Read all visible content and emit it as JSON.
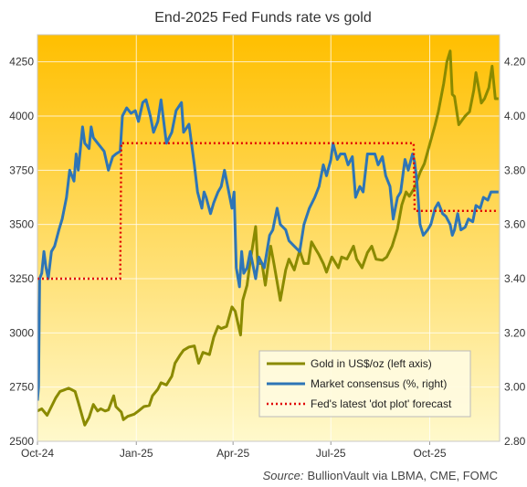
{
  "chart_data": {
    "type": "line",
    "title": "End-2025 Fed Funds rate vs gold",
    "source_prefix": "Source:",
    "source_text": "BullionVault via LBMA, CME, FOMC",
    "x_tick_labels": [
      "Oct-24",
      "Jan-25",
      "Apr-25",
      "Jul-25",
      "Oct-25"
    ],
    "x_tick_dates": [
      "2024-10-01",
      "2025-01-01",
      "2025-04-01",
      "2025-07-01",
      "2025-10-01"
    ],
    "x_range": [
      "2024-10-01",
      "2025-12-05"
    ],
    "y_left": {
      "range": [
        2500,
        4375
      ],
      "ticks": [
        2500,
        2750,
        3000,
        3250,
        3500,
        3750,
        4000,
        4250
      ]
    },
    "y_right": {
      "range": [
        2.8,
        4.3
      ],
      "ticks": [
        "2.80",
        "3.00",
        "3.20",
        "3.40",
        "3.60",
        "3.80",
        "4.00",
        "4.20"
      ]
    },
    "grid": true,
    "legend_position": "bottom-right",
    "colors": {
      "gold": "#8a8a00",
      "consensus": "#2e75b6",
      "dots": "#e00000",
      "bg_top": "#ffbf00",
      "bg_bottom": "#fff9cc"
    },
    "series": [
      {
        "name": "Gold in US$/oz (left axis)",
        "axis": "left",
        "points": [
          [
            "2024-10-01",
            2640
          ],
          [
            "2024-10-05",
            2650
          ],
          [
            "2024-10-10",
            2620
          ],
          [
            "2024-10-14",
            2660
          ],
          [
            "2024-10-18",
            2700
          ],
          [
            "2024-10-22",
            2730
          ],
          [
            "2024-10-25",
            2735
          ],
          [
            "2024-10-30",
            2745
          ],
          [
            "2024-11-01",
            2740
          ],
          [
            "2024-11-05",
            2730
          ],
          [
            "2024-11-08",
            2680
          ],
          [
            "2024-11-12",
            2610
          ],
          [
            "2024-11-14",
            2575
          ],
          [
            "2024-11-18",
            2610
          ],
          [
            "2024-11-22",
            2670
          ],
          [
            "2024-11-26",
            2640
          ],
          [
            "2024-11-29",
            2650
          ],
          [
            "2024-12-03",
            2640
          ],
          [
            "2024-12-06",
            2645
          ],
          [
            "2024-12-11",
            2710
          ],
          [
            "2024-12-13",
            2660
          ],
          [
            "2024-12-18",
            2635
          ],
          [
            "2024-12-20",
            2600
          ],
          [
            "2024-12-24",
            2615
          ],
          [
            "2024-12-30",
            2625
          ],
          [
            "2025-01-03",
            2640
          ],
          [
            "2025-01-08",
            2660
          ],
          [
            "2025-01-13",
            2665
          ],
          [
            "2025-01-16",
            2710
          ],
          [
            "2025-01-21",
            2740
          ],
          [
            "2025-01-24",
            2770
          ],
          [
            "2025-01-29",
            2760
          ],
          [
            "2025-02-03",
            2800
          ],
          [
            "2025-02-06",
            2860
          ],
          [
            "2025-02-11",
            2900
          ],
          [
            "2025-02-14",
            2920
          ],
          [
            "2025-02-19",
            2935
          ],
          [
            "2025-02-24",
            2940
          ],
          [
            "2025-02-28",
            2860
          ],
          [
            "2025-03-04",
            2910
          ],
          [
            "2025-03-10",
            2900
          ],
          [
            "2025-03-14",
            2980
          ],
          [
            "2025-03-18",
            3030
          ],
          [
            "2025-03-21",
            3020
          ],
          [
            "2025-03-26",
            3030
          ],
          [
            "2025-03-31",
            3120
          ],
          [
            "2025-04-03",
            3100
          ],
          [
            "2025-04-08",
            2990
          ],
          [
            "2025-04-10",
            3150
          ],
          [
            "2025-04-14",
            3220
          ],
          [
            "2025-04-17",
            3330
          ],
          [
            "2025-04-22",
            3490
          ],
          [
            "2025-04-24",
            3320
          ],
          [
            "2025-04-28",
            3320
          ],
          [
            "2025-05-01",
            3220
          ],
          [
            "2025-05-06",
            3400
          ],
          [
            "2025-05-09",
            3320
          ],
          [
            "2025-05-15",
            3150
          ],
          [
            "2025-05-20",
            3290
          ],
          [
            "2025-05-23",
            3340
          ],
          [
            "2025-05-28",
            3290
          ],
          [
            "2025-06-02",
            3380
          ],
          [
            "2025-06-06",
            3320
          ],
          [
            "2025-06-10",
            3320
          ],
          [
            "2025-06-13",
            3420
          ],
          [
            "2025-06-17",
            3385
          ],
          [
            "2025-06-20",
            3360
          ],
          [
            "2025-06-24",
            3320
          ],
          [
            "2025-06-27",
            3280
          ],
          [
            "2025-07-02",
            3350
          ],
          [
            "2025-07-08",
            3300
          ],
          [
            "2025-07-11",
            3350
          ],
          [
            "2025-07-16",
            3340
          ],
          [
            "2025-07-22",
            3400
          ],
          [
            "2025-07-25",
            3340
          ],
          [
            "2025-07-30",
            3300
          ],
          [
            "2025-08-04",
            3370
          ],
          [
            "2025-08-08",
            3400
          ],
          [
            "2025-08-12",
            3340
          ],
          [
            "2025-08-18",
            3335
          ],
          [
            "2025-08-22",
            3350
          ],
          [
            "2025-08-27",
            3400
          ],
          [
            "2025-09-01",
            3480
          ],
          [
            "2025-09-05",
            3590
          ],
          [
            "2025-09-09",
            3650
          ],
          [
            "2025-09-12",
            3630
          ],
          [
            "2025-09-17",
            3670
          ],
          [
            "2025-09-22",
            3740
          ],
          [
            "2025-09-26",
            3780
          ],
          [
            "2025-10-01",
            3870
          ],
          [
            "2025-10-06",
            3960
          ],
          [
            "2025-10-09",
            4020
          ],
          [
            "2025-10-14",
            4150
          ],
          [
            "2025-10-17",
            4250
          ],
          [
            "2025-10-20",
            4300
          ],
          [
            "2025-10-22",
            4100
          ],
          [
            "2025-10-24",
            4090
          ],
          [
            "2025-10-28",
            3960
          ],
          [
            "2025-11-03",
            4000
          ],
          [
            "2025-11-07",
            4020
          ],
          [
            "2025-11-11",
            4120
          ],
          [
            "2025-11-13",
            4200
          ],
          [
            "2025-11-18",
            4060
          ],
          [
            "2025-11-21",
            4080
          ],
          [
            "2025-11-25",
            4130
          ],
          [
            "2025-11-28",
            4230
          ],
          [
            "2025-12-01",
            4080
          ],
          [
            "2025-12-04",
            4080
          ]
        ]
      },
      {
        "name": "Market consensus (%, right)",
        "axis": "right",
        "points": [
          [
            "2024-10-01",
            2.95
          ],
          [
            "2024-10-02",
            3.0
          ],
          [
            "2024-10-03",
            3.4
          ],
          [
            "2024-10-05",
            3.42
          ],
          [
            "2024-10-07",
            3.5
          ],
          [
            "2024-10-09",
            3.44
          ],
          [
            "2024-10-11",
            3.4
          ],
          [
            "2024-10-14",
            3.5
          ],
          [
            "2024-10-17",
            3.52
          ],
          [
            "2024-10-21",
            3.58
          ],
          [
            "2024-10-24",
            3.62
          ],
          [
            "2024-10-28",
            3.7
          ],
          [
            "2024-10-31",
            3.8
          ],
          [
            "2024-11-04",
            3.76
          ],
          [
            "2024-11-06",
            3.86
          ],
          [
            "2024-11-08",
            3.8
          ],
          [
            "2024-11-12",
            3.96
          ],
          [
            "2024-11-14",
            3.9
          ],
          [
            "2024-11-18",
            3.88
          ],
          [
            "2024-11-20",
            3.96
          ],
          [
            "2024-11-22",
            3.92
          ],
          [
            "2024-11-26",
            3.9
          ],
          [
            "2024-12-02",
            3.87
          ],
          [
            "2024-12-06",
            3.8
          ],
          [
            "2024-12-10",
            3.85
          ],
          [
            "2024-12-13",
            3.86
          ],
          [
            "2024-12-17",
            3.87
          ],
          [
            "2024-12-19",
            4.0
          ],
          [
            "2024-12-23",
            4.03
          ],
          [
            "2024-12-27",
            4.01
          ],
          [
            "2024-12-31",
            4.02
          ],
          [
            "2025-01-03",
            3.98
          ],
          [
            "2025-01-07",
            4.05
          ],
          [
            "2025-01-10",
            4.06
          ],
          [
            "2025-01-14",
            4.0
          ],
          [
            "2025-01-17",
            3.94
          ],
          [
            "2025-01-21",
            3.98
          ],
          [
            "2025-01-24",
            4.06
          ],
          [
            "2025-01-29",
            3.9
          ],
          [
            "2025-02-03",
            3.94
          ],
          [
            "2025-02-07",
            4.02
          ],
          [
            "2025-02-12",
            4.05
          ],
          [
            "2025-02-14",
            3.94
          ],
          [
            "2025-02-19",
            3.97
          ],
          [
            "2025-02-24",
            3.82
          ],
          [
            "2025-02-27",
            3.72
          ],
          [
            "2025-03-03",
            3.66
          ],
          [
            "2025-03-05",
            3.72
          ],
          [
            "2025-03-07",
            3.7
          ],
          [
            "2025-03-11",
            3.64
          ],
          [
            "2025-03-14",
            3.68
          ],
          [
            "2025-03-18",
            3.72
          ],
          [
            "2025-03-21",
            3.74
          ],
          [
            "2025-03-24",
            3.8
          ],
          [
            "2025-03-27",
            3.74
          ],
          [
            "2025-03-31",
            3.66
          ],
          [
            "2025-04-02",
            3.72
          ],
          [
            "2025-04-04",
            3.44
          ],
          [
            "2025-04-07",
            3.37
          ],
          [
            "2025-04-09",
            3.5
          ],
          [
            "2025-04-11",
            3.42
          ],
          [
            "2025-04-14",
            3.44
          ],
          [
            "2025-04-17",
            3.5
          ],
          [
            "2025-04-22",
            3.4
          ],
          [
            "2025-04-25",
            3.48
          ],
          [
            "2025-04-30",
            3.44
          ],
          [
            "2025-05-05",
            3.56
          ],
          [
            "2025-05-08",
            3.58
          ],
          [
            "2025-05-12",
            3.66
          ],
          [
            "2025-05-15",
            3.6
          ],
          [
            "2025-05-20",
            3.58
          ],
          [
            "2025-05-23",
            3.54
          ],
          [
            "2025-05-28",
            3.52
          ],
          [
            "2025-06-02",
            3.5
          ],
          [
            "2025-06-06",
            3.6
          ],
          [
            "2025-06-11",
            3.66
          ],
          [
            "2025-06-16",
            3.7
          ],
          [
            "2025-06-20",
            3.74
          ],
          [
            "2025-06-24",
            3.82
          ],
          [
            "2025-06-27",
            3.78
          ],
          [
            "2025-07-01",
            3.84
          ],
          [
            "2025-07-03",
            3.9
          ],
          [
            "2025-07-07",
            3.84
          ],
          [
            "2025-07-10",
            3.86
          ],
          [
            "2025-07-14",
            3.86
          ],
          [
            "2025-07-17",
            3.82
          ],
          [
            "2025-07-21",
            3.85
          ],
          [
            "2025-07-24",
            3.7
          ],
          [
            "2025-07-28",
            3.74
          ],
          [
            "2025-07-31",
            3.72
          ],
          [
            "2025-08-04",
            3.86
          ],
          [
            "2025-08-07",
            3.86
          ],
          [
            "2025-08-11",
            3.86
          ],
          [
            "2025-08-14",
            3.82
          ],
          [
            "2025-08-18",
            3.85
          ],
          [
            "2025-08-21",
            3.78
          ],
          [
            "2025-08-25",
            3.74
          ],
          [
            "2025-08-28",
            3.62
          ],
          [
            "2025-09-01",
            3.7
          ],
          [
            "2025-09-04",
            3.72
          ],
          [
            "2025-09-08",
            3.84
          ],
          [
            "2025-09-11",
            3.8
          ],
          [
            "2025-09-15",
            3.86
          ],
          [
            "2025-09-17",
            3.83
          ],
          [
            "2025-09-19",
            3.76
          ],
          [
            "2025-09-22",
            3.6
          ],
          [
            "2025-09-25",
            3.56
          ],
          [
            "2025-09-29",
            3.58
          ],
          [
            "2025-10-02",
            3.6
          ],
          [
            "2025-10-06",
            3.66
          ],
          [
            "2025-10-09",
            3.68
          ],
          [
            "2025-10-13",
            3.64
          ],
          [
            "2025-10-16",
            3.63
          ],
          [
            "2025-10-20",
            3.6
          ],
          [
            "2025-10-22",
            3.56
          ],
          [
            "2025-10-24",
            3.58
          ],
          [
            "2025-10-27",
            3.64
          ],
          [
            "2025-10-30",
            3.58
          ],
          [
            "2025-11-03",
            3.59
          ],
          [
            "2025-11-06",
            3.62
          ],
          [
            "2025-11-10",
            3.61
          ],
          [
            "2025-11-13",
            3.67
          ],
          [
            "2025-11-17",
            3.66
          ],
          [
            "2025-11-20",
            3.7
          ],
          [
            "2025-11-24",
            3.69
          ],
          [
            "2025-11-27",
            3.72
          ],
          [
            "2025-12-01",
            3.72
          ],
          [
            "2025-12-04",
            3.72
          ]
        ]
      },
      {
        "name": "Fed's latest 'dot plot' forecast",
        "axis": "right",
        "points": [
          [
            "2024-10-01",
            3.4
          ],
          [
            "2024-12-17",
            3.4
          ],
          [
            "2024-12-18",
            3.9
          ],
          [
            "2025-09-16",
            3.9
          ],
          [
            "2025-09-17",
            3.65
          ],
          [
            "2025-12-04",
            3.65
          ]
        ]
      }
    ]
  }
}
